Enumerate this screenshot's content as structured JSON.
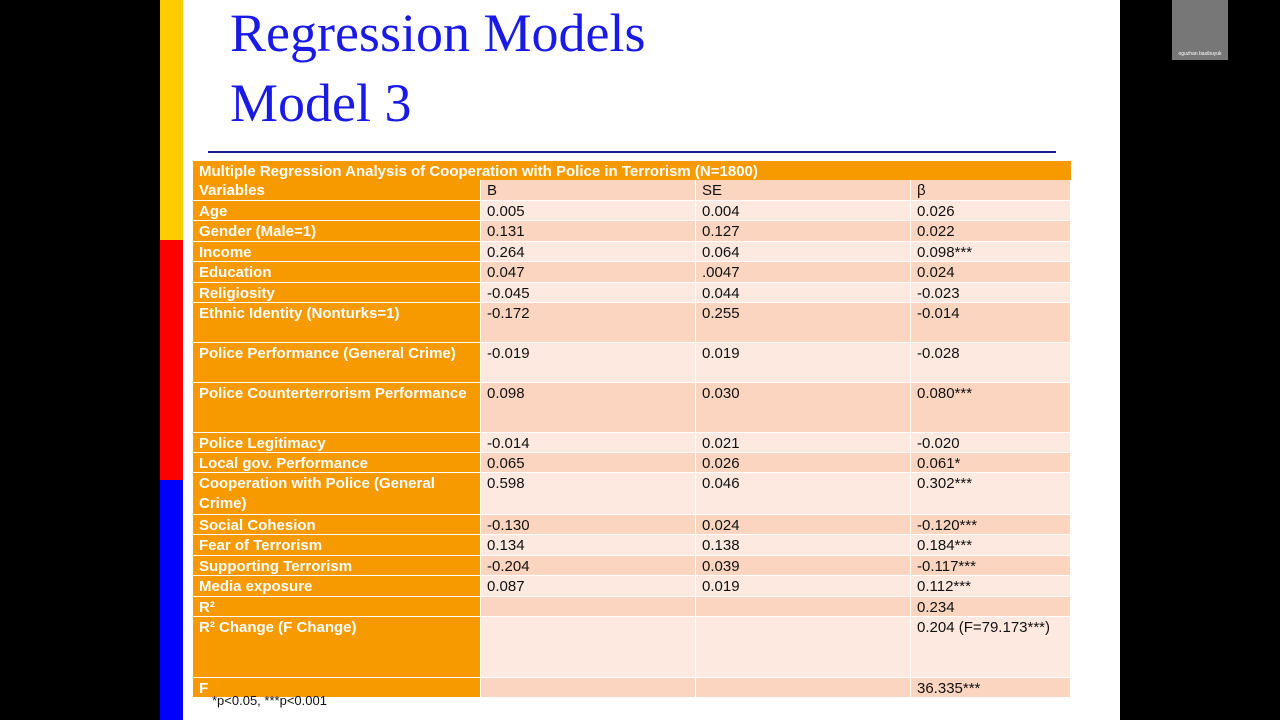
{
  "slide": {
    "title": [
      "Regression Models",
      "Model 3"
    ]
  },
  "table": {
    "caption": "Multiple Regression Analysis of Cooperation with Police in Terrorism (N=1800)",
    "header": [
      "Variables",
      "B",
      "SE",
      "β"
    ],
    "rows": [
      [
        "Age",
        "0.005",
        "0.004",
        "0.026"
      ],
      [
        "Gender (Male=1)",
        "0.131",
        "0.127",
        "0.022"
      ],
      [
        "Income",
        "0.264",
        "0.064",
        "0.098***"
      ],
      [
        "Education",
        "0.047",
        ".0047",
        "0.024"
      ],
      [
        "Religiosity",
        "-0.045",
        "0.044",
        "-0.023"
      ],
      [
        "Ethnic Identity (Nonturks=1)",
        "-0.172",
        "0.255",
        "-0.014"
      ],
      [
        "Police Performance (General Crime)",
        "-0.019",
        "0.019",
        "-0.028"
      ],
      [
        "Police Counterterrorism Performance",
        "0.098",
        "0.030",
        "0.080***"
      ],
      [
        "Police Legitimacy",
        "-0.014",
        "0.021",
        "-0.020"
      ],
      [
        "Local gov. Performance",
        "0.065",
        "0.026",
        "0.061*"
      ],
      [
        "Cooperation with Police (General Crime)",
        "0.598",
        "0.046",
        "0.302***"
      ],
      [
        "Social Cohesion",
        "-0.130",
        "0.024",
        "-0.120***"
      ],
      [
        "Fear of Terrorism",
        "0.134",
        "0.138",
        "0.184***"
      ],
      [
        "Supporting Terrorism",
        "-0.204",
        "0.039",
        "-0.117***"
      ],
      [
        "Media exposure",
        "0.087",
        "0.019",
        "0.112***"
      ],
      [
        "R²",
        null,
        null,
        "0.234"
      ],
      [
        "R² Change (F Change)",
        null,
        null,
        "0.204 (F=79.173***)"
      ],
      [
        "F",
        null,
        null,
        "36.335***"
      ]
    ],
    "footnote": "*p<0.05, ***p<0.001"
  },
  "webcam": {
    "name": "oguzhan basibuyuk"
  }
}
